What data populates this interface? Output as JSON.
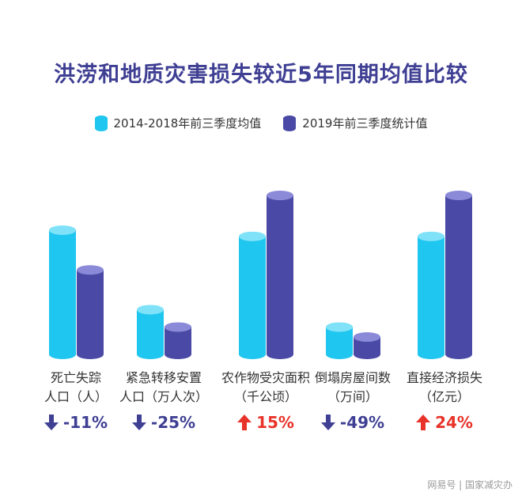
{
  "chart_data": {
    "type": "bar",
    "title": "洪涝和地质灾害损失较近5年同期均值比较",
    "categories": [
      {
        "line1": "死亡失踪",
        "line2": "人口（人）"
      },
      {
        "line1": "紧急转移安置",
        "line2": "人口（万人次）"
      },
      {
        "line1": "农作物受灾面积",
        "line2": "（千公顷）"
      },
      {
        "line1": "倒塌房屋间数",
        "line2": "（万间）"
      },
      {
        "line1": "直接经济损失",
        "line2": "（亿元）"
      }
    ],
    "series": [
      {
        "name": "2014-2018年前三季度均值",
        "color": "#1fc6ef",
        "top_color": "#7fe2f8",
        "relative_values": [
          100,
          100,
          100,
          100,
          100
        ]
      },
      {
        "name": "2019年前三季度统计值",
        "color": "#4a4aa6",
        "top_color": "#8a8ad8",
        "relative_values": [
          89,
          75,
          115,
          51,
          124
        ]
      }
    ],
    "changes": [
      {
        "text": "-11%",
        "direction": "down",
        "color": "#3f3f94"
      },
      {
        "text": "-25%",
        "direction": "down",
        "color": "#3f3f94"
      },
      {
        "text": "15%",
        "direction": "up",
        "color": "#e8332a"
      },
      {
        "text": "-49%",
        "direction": "down",
        "color": "#3f3f94"
      },
      {
        "text": "24%",
        "direction": "up",
        "color": "#e8332a"
      }
    ],
    "bar_heights_scale": [
      [
        1.0,
        0.68
      ],
      [
        0.36,
        0.22
      ],
      [
        0.95,
        1.28
      ],
      [
        0.22,
        0.14
      ],
      [
        0.95,
        1.28
      ]
    ],
    "watermark": "网易号 | 国家减灾办"
  }
}
